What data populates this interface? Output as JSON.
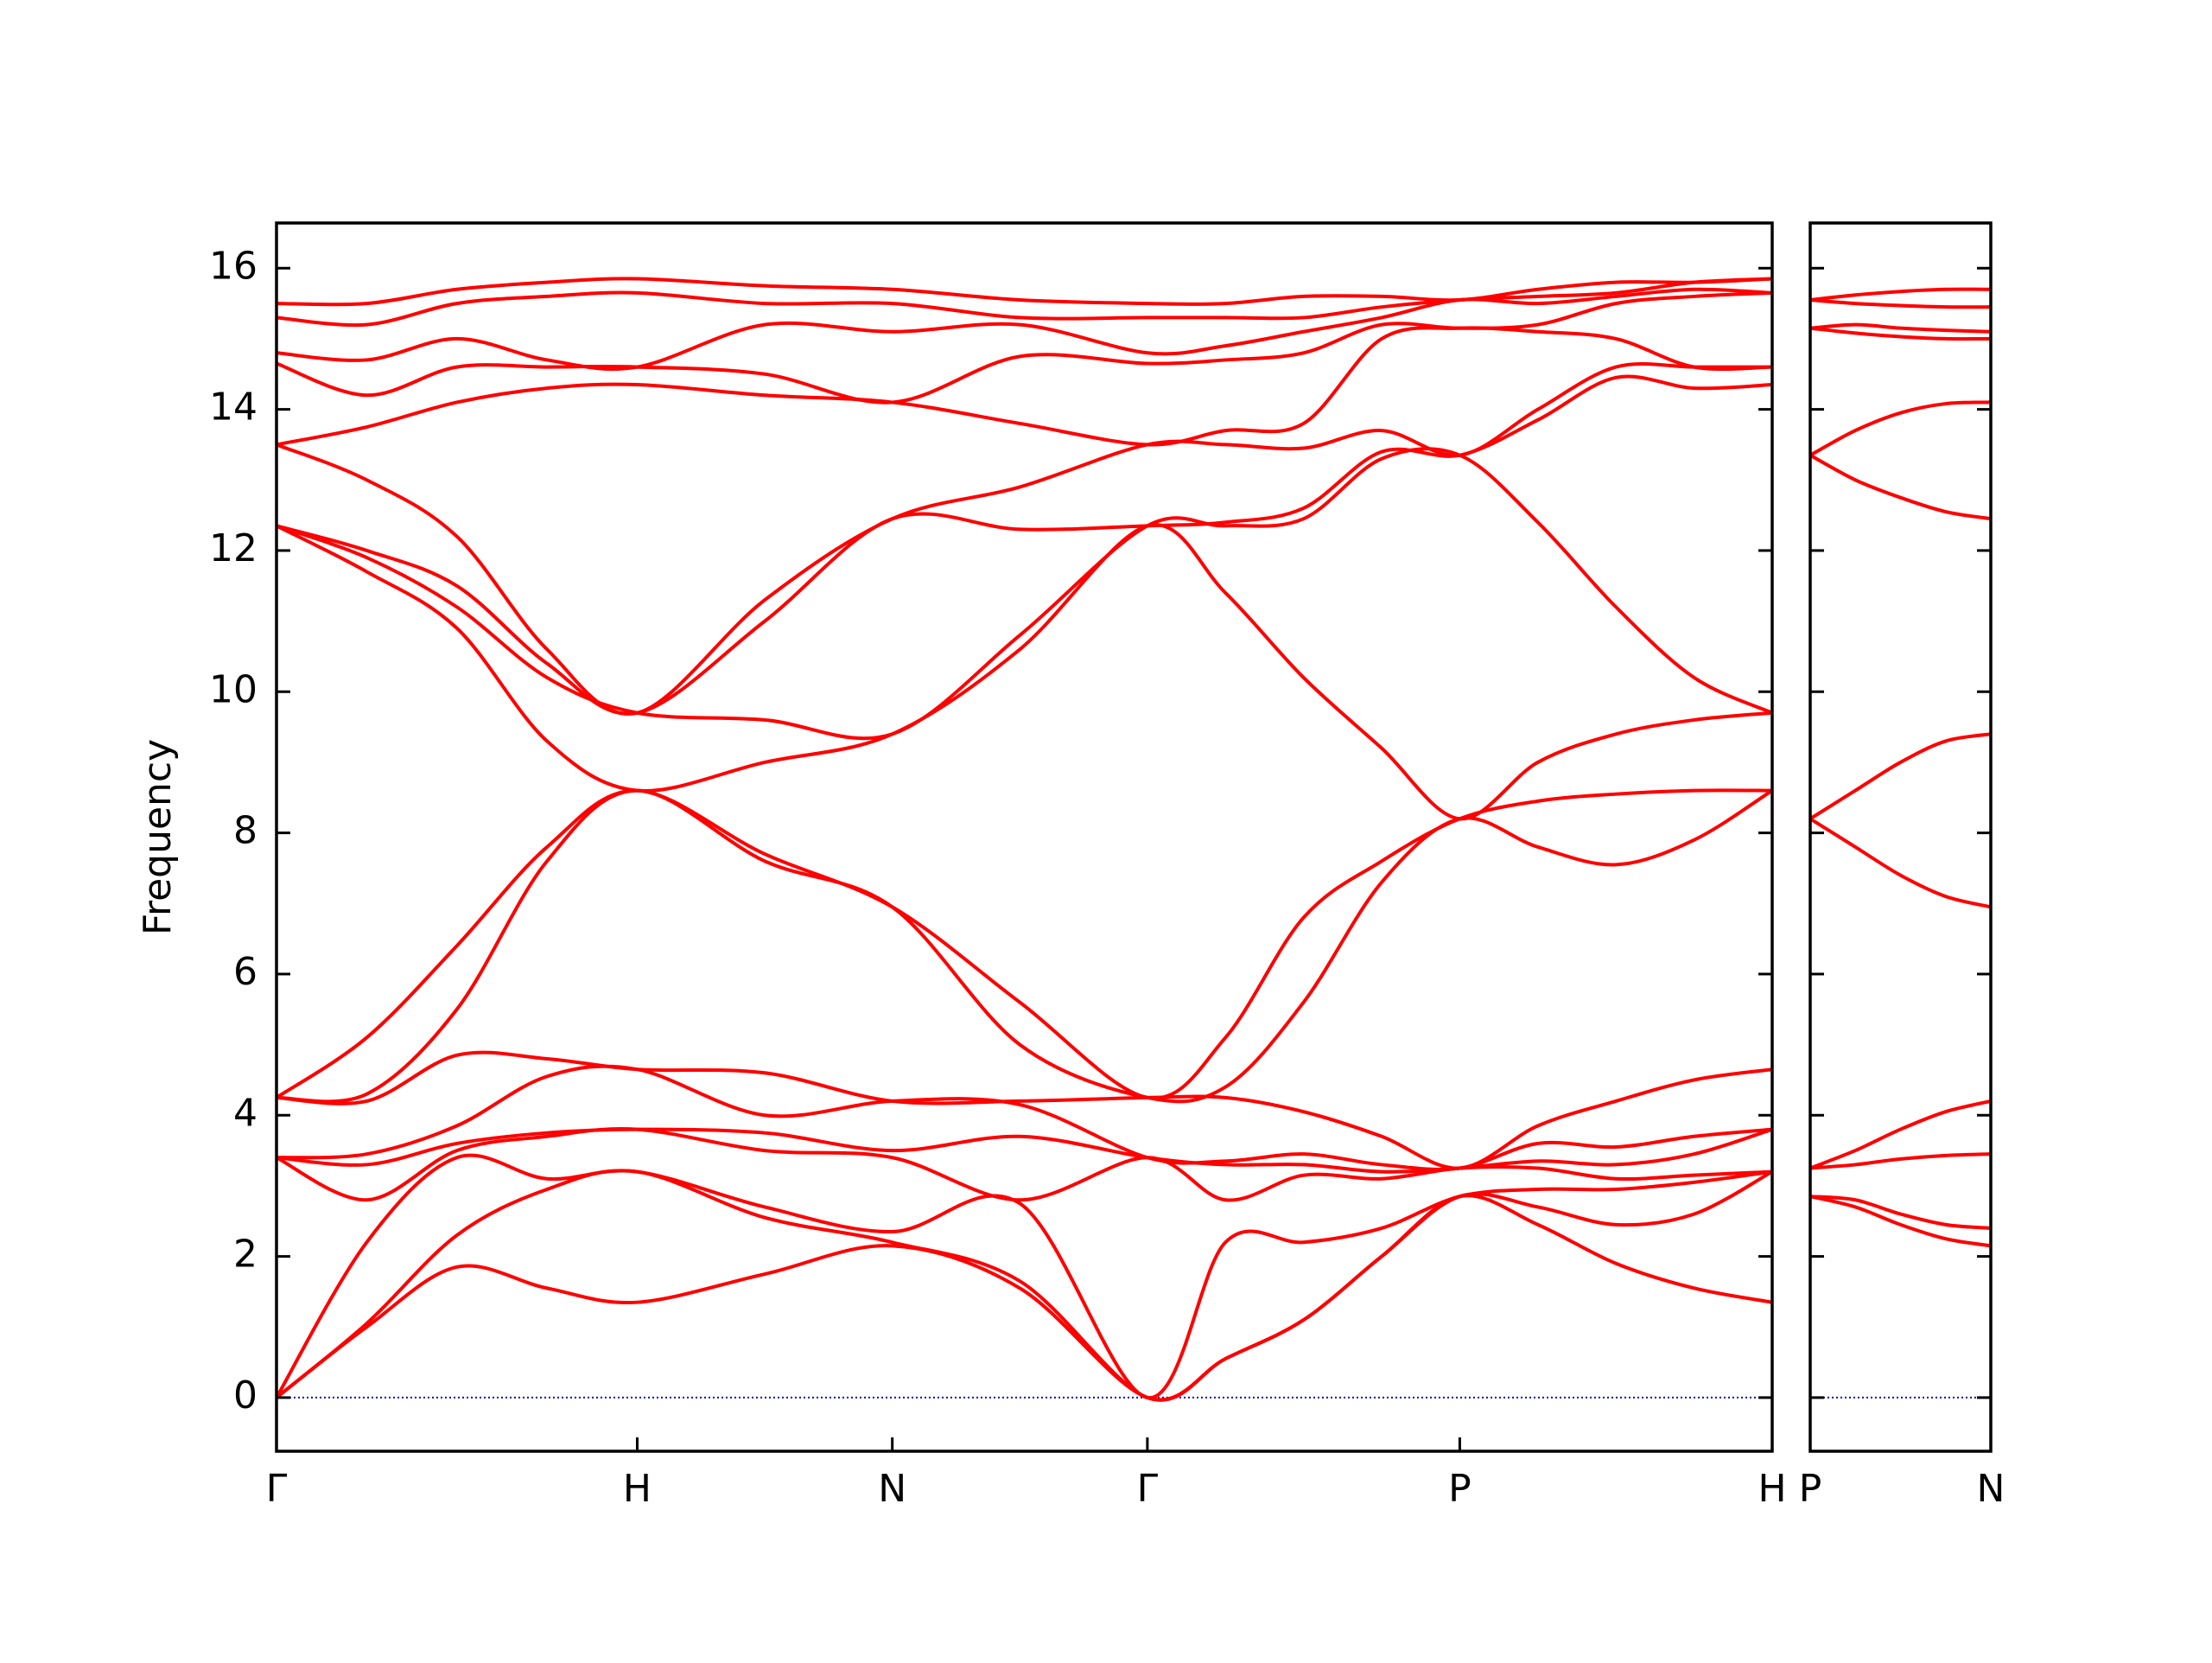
{
  "chart_data": [
    {
      "type": "line",
      "ylabel": "Frequency",
      "color": "#ff0000",
      "hline": 0,
      "hline_color": "#0000cc",
      "xlim": [
        0,
        4.1463
      ],
      "ylim": [
        -0.76,
        16.64
      ],
      "ytick_labels": true,
      "xticks": [
        {
          "value": 0,
          "label": "Γ"
        },
        {
          "value": 1,
          "label": "H"
        },
        {
          "value": 1.7071,
          "label": "N"
        },
        {
          "value": 2.4142,
          "label": "Γ"
        },
        {
          "value": 3.2802,
          "label": "P"
        },
        {
          "value": 4.1463,
          "label": "H"
        }
      ],
      "yticks": [
        0,
        2,
        4,
        6,
        8,
        10,
        12,
        14,
        16
      ],
      "x": [
        0,
        0.25,
        0.5,
        0.75,
        1,
        1.3536,
        1.7071,
        2.0607,
        2.4142,
        2.6307,
        2.8472,
        3.0637,
        3.2802,
        3.4967,
        3.7132,
        3.9298,
        4.1463
      ],
      "series": [
        {
          "values": [
            0,
            1.0,
            1.85,
            1.55,
            1.35,
            1.75,
            2.15,
            1.55,
            0,
            0.55,
            1.1,
            2.0,
            2.85,
            2.45,
            1.9,
            1.55,
            1.35
          ]
        },
        {
          "values": [
            0,
            1.05,
            2.3,
            2.95,
            3.2,
            2.55,
            2.2,
            1.65,
            0,
            0.55,
            1.1,
            2.0,
            2.85,
            2.7,
            2.45,
            2.6,
            3.2
          ]
        },
        {
          "values": [
            0,
            2.2,
            3.4,
            3.1,
            3.2,
            2.7,
            2.35,
            2.75,
            0,
            2.2,
            2.2,
            2.4,
            2.85,
            2.95,
            2.95,
            3.05,
            3.2
          ]
        },
        {
          "values": [
            3.4,
            2.8,
            3.5,
            3.7,
            3.8,
            3.5,
            3.4,
            2.8,
            3.4,
            2.8,
            3.15,
            3.1,
            3.25,
            3.25,
            3.1,
            3.15,
            3.2
          ]
        },
        {
          "values": [
            3.4,
            3.3,
            3.6,
            3.75,
            3.8,
            3.75,
            3.5,
            3.7,
            3.4,
            3.3,
            3.3,
            3.2,
            3.25,
            3.35,
            3.3,
            3.45,
            3.8
          ]
        },
        {
          "values": [
            3.4,
            3.45,
            3.85,
            4.55,
            4.65,
            4.0,
            4.2,
            4.15,
            3.4,
            3.35,
            3.45,
            3.3,
            3.25,
            3.6,
            3.55,
            3.7,
            3.8
          ]
        },
        {
          "values": [
            4.25,
            4.2,
            4.85,
            4.8,
            4.65,
            4.6,
            4.2,
            4.2,
            4.25,
            4.25,
            4.05,
            3.7,
            3.25,
            3.85,
            4.2,
            4.5,
            4.65
          ]
        },
        {
          "values": [
            4.25,
            4.3,
            5.5,
            7.6,
            8.6,
            7.6,
            6.95,
            5.0,
            4.25,
            4.4,
            5.6,
            7.3,
            8.2,
            7.8,
            7.55,
            7.9,
            8.6
          ]
        },
        {
          "values": [
            4.25,
            5.1,
            6.4,
            7.8,
            8.6,
            7.7,
            6.95,
            5.6,
            4.25,
            5.1,
            6.8,
            7.6,
            8.2,
            8.45,
            8.55,
            8.6,
            8.6
          ]
        },
        {
          "values": [
            12.35,
            11.7,
            10.9,
            9.3,
            8.6,
            9.0,
            9.4,
            10.6,
            12.35,
            11.4,
            10.2,
            9.2,
            8.2,
            9.0,
            9.4,
            9.6,
            9.7
          ]
        },
        {
          "values": [
            12.35,
            11.9,
            11.2,
            10.2,
            9.7,
            9.6,
            9.4,
            10.8,
            12.35,
            12.35,
            12.45,
            13.3,
            13.35,
            12.4,
            11.2,
            10.2,
            9.7
          ]
        },
        {
          "values": [
            12.35,
            12.0,
            11.5,
            10.4,
            9.7,
            11.0,
            12.45,
            12.3,
            12.35,
            12.4,
            12.6,
            13.4,
            13.35,
            13.85,
            14.45,
            14.3,
            14.35
          ]
        },
        {
          "values": [
            13.5,
            13.0,
            12.2,
            10.6,
            9.7,
            11.3,
            12.45,
            12.9,
            13.5,
            13.5,
            13.45,
            13.7,
            13.35,
            14.0,
            14.6,
            14.6,
            14.6
          ]
        },
        {
          "values": [
            13.5,
            13.75,
            14.1,
            14.3,
            14.35,
            14.2,
            14.1,
            13.8,
            13.5,
            13.7,
            13.8,
            15.0,
            15.15,
            15.1,
            15.0,
            14.6,
            14.6
          ]
        },
        {
          "values": [
            14.65,
            14.2,
            14.6,
            14.6,
            14.6,
            14.5,
            14.1,
            14.75,
            14.65,
            14.7,
            14.8,
            15.2,
            15.15,
            15.2,
            15.5,
            15.6,
            15.65
          ]
        },
        {
          "values": [
            14.8,
            14.7,
            15.0,
            14.7,
            14.6,
            15.2,
            15.1,
            15.2,
            14.8,
            14.9,
            15.1,
            15.3,
            15.55,
            15.5,
            15.6,
            15.7,
            15.65
          ]
        },
        {
          "values": [
            15.3,
            15.2,
            15.5,
            15.6,
            15.65,
            15.5,
            15.5,
            15.3,
            15.3,
            15.3,
            15.3,
            15.45,
            15.55,
            15.6,
            15.65,
            15.8,
            15.85
          ]
        },
        {
          "values": [
            15.5,
            15.5,
            15.7,
            15.8,
            15.85,
            15.75,
            15.7,
            15.55,
            15.5,
            15.5,
            15.6,
            15.6,
            15.55,
            15.7,
            15.8,
            15.8,
            15.85
          ]
        }
      ]
    },
    {
      "type": "line",
      "color": "#ff0000",
      "hline": 0,
      "hline_color": "#0000cc",
      "xlim": [
        0,
        0.5
      ],
      "ylim": [
        -0.76,
        16.64
      ],
      "ytick_labels": false,
      "xticks": [
        {
          "value": 0,
          "label": "P"
        },
        {
          "value": 0.5,
          "label": "N"
        }
      ],
      "yticks": [
        0,
        2,
        4,
        6,
        8,
        10,
        12,
        14,
        16
      ],
      "x": [
        0,
        0.125,
        0.25,
        0.375,
        0.5
      ],
      "series": [
        {
          "values": [
            2.85,
            2.7,
            2.45,
            2.25,
            2.15
          ]
        },
        {
          "values": [
            2.85,
            2.8,
            2.6,
            2.45,
            2.4
          ]
        },
        {
          "values": [
            3.25,
            3.3,
            3.38,
            3.43,
            3.45
          ]
        },
        {
          "values": [
            3.25,
            3.5,
            3.8,
            4.05,
            4.2
          ]
        },
        {
          "values": [
            8.2,
            7.8,
            7.4,
            7.1,
            6.95
          ]
        },
        {
          "values": [
            8.2,
            8.6,
            9.0,
            9.3,
            9.4
          ]
        },
        {
          "values": [
            13.35,
            13.0,
            12.75,
            12.55,
            12.45
          ]
        },
        {
          "values": [
            13.35,
            13.7,
            13.95,
            14.08,
            14.1
          ]
        },
        {
          "values": [
            15.15,
            15.08,
            15.03,
            15.0,
            15.0
          ]
        },
        {
          "values": [
            15.15,
            15.2,
            15.15,
            15.12,
            15.1
          ]
        },
        {
          "values": [
            15.55,
            15.5,
            15.47,
            15.45,
            15.45
          ]
        },
        {
          "values": [
            15.55,
            15.62,
            15.67,
            15.7,
            15.7
          ]
        }
      ]
    }
  ]
}
